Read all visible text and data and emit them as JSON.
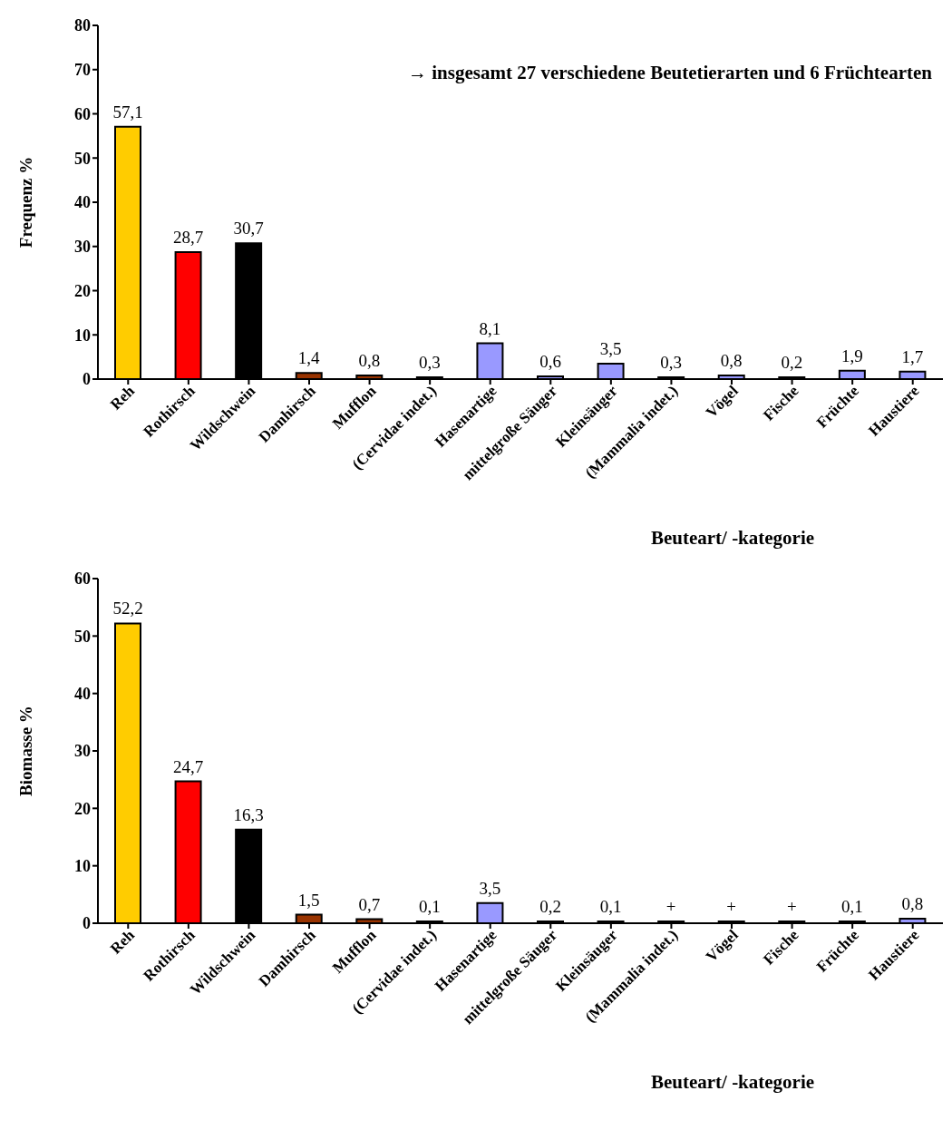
{
  "chart_data": [
    {
      "type": "bar",
      "ylabel": "Frequenz %",
      "xlabel": "Beuteart/ -kategorie",
      "annotations": [
        "→ insgesamt 27 verschiedene Beutetierarten und 6 Früchtearten"
      ],
      "categories": [
        "Reh",
        "Rothirsch",
        "Wildschwein",
        "Damhirsch",
        "Mufflon",
        "(Cervidae indet.)",
        "Hasenartige",
        "mittelgroße Säuger",
        "Kleinsäuger",
        "(Mammalia indet.)",
        "Vögel",
        "Fische",
        "Früchte",
        "Haustiere"
      ],
      "values": [
        57.1,
        28.7,
        30.7,
        1.4,
        0.8,
        0.3,
        8.1,
        0.6,
        3.5,
        0.3,
        0.8,
        0.2,
        1.9,
        1.7
      ],
      "value_labels": [
        "57,1",
        "28,7",
        "30,7",
        "1,4",
        "0,8",
        "0,3",
        "8,1",
        "0,6",
        "3,5",
        "0,3",
        "0,8",
        "0,2",
        "1,9",
        "1,7"
      ],
      "colors": [
        "#ffcc00",
        "#ff0000",
        "#000000",
        "#993300",
        "#993300",
        "#993300",
        "#9999ff",
        "#9999ff",
        "#9999ff",
        "#9999ff",
        "#9999ff",
        "#9999ff",
        "#9999ff",
        "#9999ff"
      ],
      "ylim": [
        0,
        80
      ],
      "yticks": [
        0,
        10,
        20,
        30,
        40,
        50,
        60,
        70,
        80
      ],
      "grid": false,
      "legend": false
    },
    {
      "type": "bar",
      "ylabel": "Biomasse %",
      "xlabel": "Beuteart/ -kategorie",
      "categories": [
        "Reh",
        "Rothirsch",
        "Wildschwein",
        "Damhirsch",
        "Mufflon",
        "(Cervidae indet.)",
        "Hasenartige",
        "mittelgroße Säuger",
        "Kleinsäuger",
        "(Mammalia indet.)",
        "Vögel",
        "Fische",
        "Früchte",
        "Haustiere"
      ],
      "values": [
        52.2,
        24.7,
        16.3,
        1.5,
        0.7,
        0.1,
        3.5,
        0.2,
        0.1,
        0,
        0,
        0,
        0.1,
        0.8
      ],
      "value_labels": [
        "52,2",
        "24,7",
        "16,3",
        "1,5",
        "0,7",
        "0,1",
        "3,5",
        "0,2",
        "0,1",
        "+",
        "+",
        "+",
        "0,1",
        "0,8"
      ],
      "colors": [
        "#ffcc00",
        "#ff0000",
        "#000000",
        "#993300",
        "#993300",
        "#993300",
        "#9999ff",
        "#9999ff",
        "#9999ff",
        "#9999ff",
        "#9999ff",
        "#9999ff",
        "#9999ff",
        "#9999ff"
      ],
      "ylim": [
        0,
        60
      ],
      "yticks": [
        0,
        10,
        20,
        30,
        40,
        50,
        60
      ],
      "grid": false,
      "legend": false
    }
  ]
}
